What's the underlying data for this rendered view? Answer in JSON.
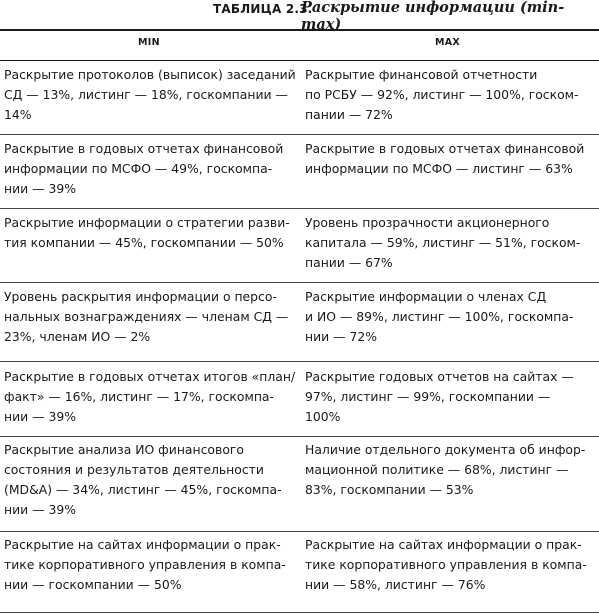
{
  "table": {
    "label": "ТАБЛИЦА 2.3.",
    "caption": "Раскрытие информации (min-max)",
    "columns": [
      "MIN",
      "MAX"
    ],
    "rows": [
      {
        "min": [
          "Раскрытие протоколов (выписок) заседаний",
          "СД — 13%, листинг — 18%, госкомпании —",
          "14%"
        ],
        "max": [
          "Раскрытие финансовой отчетности",
          "по РСБУ — 92%, листинг — 100%, госком-",
          "пании — 72%"
        ]
      },
      {
        "min": [
          "Раскрытие в годовых отчетах финансовой",
          "информации по МСФО — 49%, госкомпа-",
          "нии — 39%"
        ],
        "max": [
          "Раскрытие в годовых отчетах финансовой",
          "информации по МСФО — листинг — 63%"
        ]
      },
      {
        "min": [
          "Раскрытие информации о стратегии разви-",
          "тия компании — 45%, госкомпании — 50%"
        ],
        "max": [
          "Уровень прозрачности акционерного",
          "капитала — 59%, листинг — 51%, госком-",
          "пании — 67%"
        ]
      },
      {
        "min": [
          "Уровень раскрытия информации о персо-",
          "нальных вознаграждениях — членам СД —",
          "23%, членам ИО — 2%"
        ],
        "max": [
          "Раскрытие информации о членах СД",
          "и ИО — 89%, листинг — 100%, госкомпа-",
          "нии — 72%"
        ]
      },
      {
        "min": [
          "Раскрытие в годовых отчетах итогов «план/",
          "факт» — 16%, листинг — 17%, госкомпа-",
          "нии — 39%"
        ],
        "max": [
          "Раскрытие годовых отчетов на сайтах —",
          "97%, листинг — 99%, госкомпании —",
          "100%"
        ]
      },
      {
        "min": [
          "Раскрытие анализа ИО финансового",
          "состояния и результатов деятельности",
          "(MD&A) — 34%, листинг — 45%, госкомпа-",
          "нии — 39%"
        ],
        "max": [
          "Наличие отдельного документа об инфор-",
          "мационной политике — 68%, листинг —",
          "83%, госкомпании — 53%"
        ]
      },
      {
        "min": [
          "Раскрытие на сайтах информации о прак-",
          "тике корпоративного управления в компа-",
          "нии — госкомпании — 50%"
        ],
        "max": [
          "Раскрытие на сайтах информации о прак-",
          "тике корпоративного управления в компа-",
          "нии — 58%, листинг — 76%"
        ]
      }
    ]
  }
}
